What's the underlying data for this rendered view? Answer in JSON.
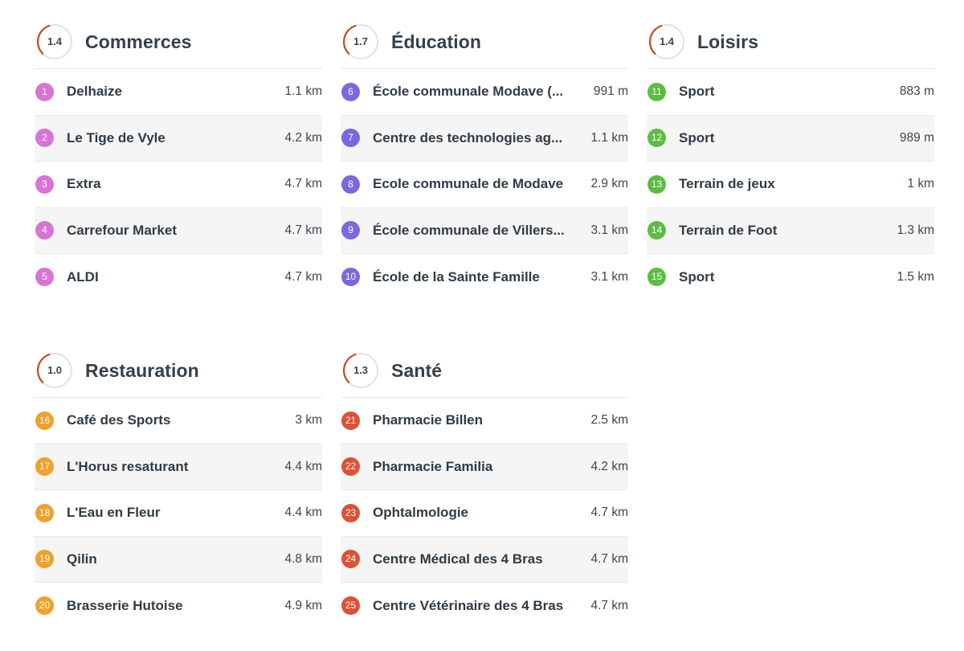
{
  "colors": {
    "commerces": "#d874d4",
    "education": "#7b68e0",
    "loisirs": "#5cbd43",
    "restauration": "#efa12a",
    "sante": "#dd5134",
    "gauge_arc": "#c84a22",
    "gauge_track": "#dfe1e3"
  },
  "categories": [
    {
      "key": "commerces",
      "title": "Commerces",
      "score": "1.4",
      "items": [
        {
          "num": "1",
          "name": "Delhaize",
          "distance": "1.1 km"
        },
        {
          "num": "2",
          "name": "Le Tige de Vyle",
          "distance": "4.2 km"
        },
        {
          "num": "3",
          "name": "Extra",
          "distance": "4.7 km"
        },
        {
          "num": "4",
          "name": "Carrefour Market",
          "distance": "4.7 km"
        },
        {
          "num": "5",
          "name": "ALDI",
          "distance": "4.7 km"
        }
      ]
    },
    {
      "key": "education",
      "title": "Éducation",
      "score": "1.7",
      "items": [
        {
          "num": "6",
          "name": "École communale Modave (...",
          "distance": "991 m"
        },
        {
          "num": "7",
          "name": "Centre des technologies ag...",
          "distance": "1.1 km"
        },
        {
          "num": "8",
          "name": "Ecole communale de Modave",
          "distance": "2.9 km"
        },
        {
          "num": "9",
          "name": "École communale de Villers...",
          "distance": "3.1 km"
        },
        {
          "num": "10",
          "name": "École de la Sainte Famille",
          "distance": "3.1 km"
        }
      ]
    },
    {
      "key": "loisirs",
      "title": "Loisirs",
      "score": "1.4",
      "items": [
        {
          "num": "11",
          "name": "Sport",
          "distance": "883 m"
        },
        {
          "num": "12",
          "name": "Sport",
          "distance": "989 m"
        },
        {
          "num": "13",
          "name": "Terrain de jeux",
          "distance": "1 km"
        },
        {
          "num": "14",
          "name": "Terrain de Foot",
          "distance": "1.3 km"
        },
        {
          "num": "15",
          "name": "Sport",
          "distance": "1.5 km"
        }
      ]
    },
    {
      "key": "restauration",
      "title": "Restauration",
      "score": "1.0",
      "items": [
        {
          "num": "16",
          "name": "Café des Sports",
          "distance": "3 km"
        },
        {
          "num": "17",
          "name": "L'Horus resaturant",
          "distance": "4.4 km"
        },
        {
          "num": "18",
          "name": "L'Eau en Fleur",
          "distance": "4.4 km"
        },
        {
          "num": "19",
          "name": "Qilin",
          "distance": "4.8 km"
        },
        {
          "num": "20",
          "name": "Brasserie Hutoise",
          "distance": "4.9 km"
        }
      ]
    },
    {
      "key": "sante",
      "title": "Santé",
      "score": "1.3",
      "items": [
        {
          "num": "21",
          "name": "Pharmacie Billen",
          "distance": "2.5 km"
        },
        {
          "num": "22",
          "name": "Pharmacie Familia",
          "distance": "4.2 km"
        },
        {
          "num": "23",
          "name": "Ophtalmologie",
          "distance": "4.7 km"
        },
        {
          "num": "24",
          "name": "Centre Médical des 4 Bras",
          "distance": "4.7 km"
        },
        {
          "num": "25",
          "name": "Centre Vétérinaire des 4 Bras",
          "distance": "4.7 km"
        }
      ]
    }
  ]
}
